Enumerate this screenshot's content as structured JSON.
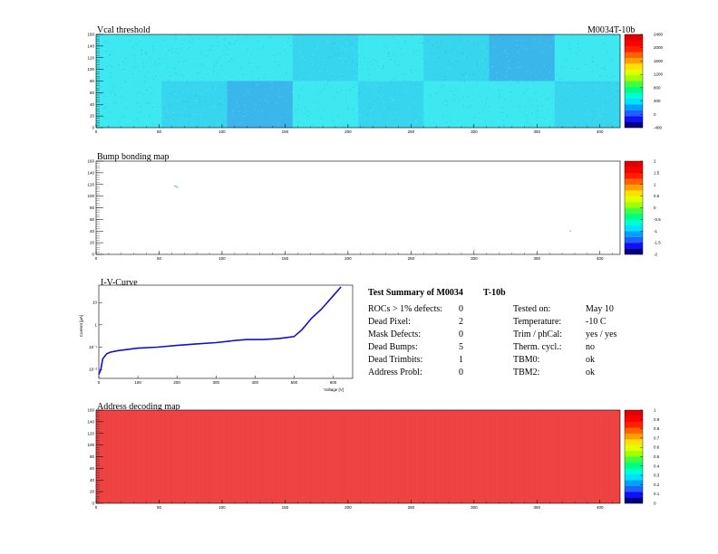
{
  "module_label": "M0034T-10b",
  "panels": {
    "vcal": {
      "title": "Vcal threshold"
    },
    "bump": {
      "title": "Bump bonding map"
    },
    "iv": {
      "title": "I-V-Curve",
      "xlabel": "Voltage [V]",
      "ylabel": "Current [µA]"
    },
    "address": {
      "title": "Address decoding map"
    }
  },
  "summary": {
    "heading_left": "Test Summary of M0034",
    "heading_right": "T-10b",
    "left_rows": [
      {
        "label": "ROCs > 1% defects:",
        "value": "0"
      },
      {
        "label": "Dead Pixel:",
        "value": "2"
      },
      {
        "label": "Mask Defects:",
        "value": "0"
      },
      {
        "label": "Dead Bumps:",
        "value": "5"
      },
      {
        "label": "Dead Trimbits:",
        "value": "1"
      },
      {
        "label": "Address Probl:",
        "value": "0"
      }
    ],
    "right_rows": [
      {
        "label": "Tested on:",
        "value": "May 10"
      },
      {
        "label": "Temperature:",
        "value": "-10 C"
      },
      {
        "label": "Trim / phCal:",
        "value": "yes / yes"
      },
      {
        "label": "Therm. cycl.:",
        "value": "no"
      },
      {
        "label": "TBM0:",
        "value": "ok"
      },
      {
        "label": "TBM2:",
        "value": "ok"
      }
    ]
  },
  "chart_data": [
    {
      "type": "heatmap",
      "title": "Vcal threshold",
      "xlim": [
        0,
        416
      ],
      "ylim": [
        0,
        160
      ],
      "xticks": [
        "0",
        "50",
        "100",
        "150",
        "200",
        "250",
        "300",
        "350",
        "400"
      ],
      "yticks": [
        "0",
        "20",
        "40",
        "60",
        "80",
        "100",
        "120",
        "140",
        "160"
      ],
      "zticks": [
        "-400",
        "0",
        "400",
        "800",
        "1200",
        "1600",
        "2000",
        "2400"
      ],
      "grid": false,
      "legend": "color scale at right",
      "roc_blocks": [
        {
          "col": 0,
          "row": "top",
          "level": "light"
        },
        {
          "col": 1,
          "row": "top",
          "level": "light"
        },
        {
          "col": 2,
          "row": "top",
          "level": "light"
        },
        {
          "col": 3,
          "row": "top",
          "level": "mid"
        },
        {
          "col": 4,
          "row": "top",
          "level": "light"
        },
        {
          "col": 5,
          "row": "top",
          "level": "mid"
        },
        {
          "col": 6,
          "row": "top",
          "level": "dark"
        },
        {
          "col": 7,
          "row": "top",
          "level": "light"
        },
        {
          "col": 0,
          "row": "bottom",
          "level": "light"
        },
        {
          "col": 1,
          "row": "bottom",
          "level": "mid"
        },
        {
          "col": 2,
          "row": "bottom",
          "level": "dark"
        },
        {
          "col": 3,
          "row": "bottom",
          "level": "light"
        },
        {
          "col": 4,
          "row": "bottom",
          "level": "mid"
        },
        {
          "col": 5,
          "row": "bottom",
          "level": "light"
        },
        {
          "col": 6,
          "row": "bottom",
          "level": "light"
        },
        {
          "col": 7,
          "row": "bottom",
          "level": "mid"
        }
      ],
      "colors": {
        "light": "#3ee8f0",
        "mid": "#38d6ee",
        "dark": "#3ab6ea"
      }
    },
    {
      "type": "heatmap",
      "title": "Bump bonding map",
      "xlim": [
        0,
        416
      ],
      "ylim": [
        0,
        160
      ],
      "xticks": [
        "0",
        "50",
        "100",
        "150",
        "200",
        "250",
        "300",
        "350",
        "400"
      ],
      "yticks": [
        "0",
        "20",
        "40",
        "60",
        "80",
        "100",
        "120",
        "140",
        "160"
      ],
      "zticks": [
        "-2",
        "-1.5",
        "-1",
        "-0.5",
        "0",
        "0.5",
        "1",
        "1.5",
        "2"
      ],
      "grid": false,
      "legend": "color scale at right",
      "points": [
        {
          "x": 62,
          "y": 118,
          "color": "#44cc44"
        },
        {
          "x": 63,
          "y": 117,
          "color": "#44cc44"
        },
        {
          "x": 64,
          "y": 116,
          "color": "#44cc44"
        },
        {
          "x": 376,
          "y": 41,
          "color": "#44cc44"
        },
        {
          "x": 300,
          "y": 8,
          "color": "#bbbbbb"
        }
      ]
    },
    {
      "type": "line",
      "title": "I-V-Curve",
      "xlabel": "Voltage [V]",
      "ylabel": "Current [µA]",
      "xlim": [
        0,
        650
      ],
      "log_y": true,
      "xticks": [
        "0",
        "100",
        "200",
        "300",
        "400",
        "500",
        "600"
      ],
      "yticks": [
        "10⁻²",
        "10⁻¹",
        "1",
        "10"
      ],
      "series": [
        {
          "color": "#1010cc",
          "points": [
            [
              0,
              0.006
            ],
            [
              5,
              0.01
            ],
            [
              10,
              0.03
            ],
            [
              20,
              0.05
            ],
            [
              30,
              0.06
            ],
            [
              50,
              0.07
            ],
            [
              75,
              0.08
            ],
            [
              100,
              0.09
            ],
            [
              150,
              0.1
            ],
            [
              200,
              0.12
            ],
            [
              250,
              0.14
            ],
            [
              300,
              0.16
            ],
            [
              350,
              0.2
            ],
            [
              380,
              0.22
            ],
            [
              420,
              0.22
            ],
            [
              460,
              0.24
            ],
            [
              500,
              0.3
            ],
            [
              520,
              0.6
            ],
            [
              545,
              2.0
            ],
            [
              570,
              5
            ],
            [
              600,
              20
            ],
            [
              620,
              50
            ]
          ]
        }
      ]
    },
    {
      "type": "heatmap",
      "title": "Address decoding map",
      "xlim": [
        0,
        416
      ],
      "ylim": [
        0,
        160
      ],
      "xticks": [
        "0",
        "50",
        "100",
        "150",
        "200",
        "250",
        "300",
        "350",
        "400"
      ],
      "yticks": [
        "0",
        "20",
        "40",
        "60",
        "80",
        "100",
        "120",
        "140",
        "160"
      ],
      "zticks": [
        "0",
        "0.1",
        "0.2",
        "0.3",
        "0.4",
        "0.5",
        "0.6",
        "0.7",
        "0.8",
        "0.9",
        "1"
      ],
      "grid": false,
      "legend": "color scale at right",
      "fill_value": 1,
      "fill_color": "#f04444"
    }
  ],
  "palette": [
    "#000080",
    "#1010ff",
    "#2060ff",
    "#00a0ff",
    "#00e0ff",
    "#00ffd0",
    "#00ff80",
    "#40ff40",
    "#a0ff00",
    "#e0ff00",
    "#ffe000",
    "#ffa000",
    "#ff6000",
    "#ff2000",
    "#ff0000",
    "#e00000"
  ]
}
